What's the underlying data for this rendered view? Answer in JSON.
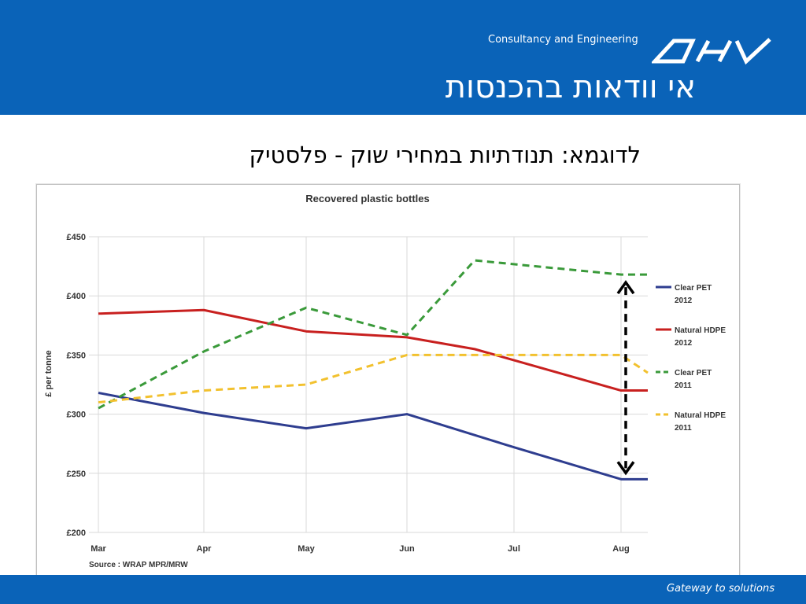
{
  "header": {
    "company_tagline": "Consultancy and Engineering",
    "logo_text": "DHV",
    "slide_title": "אי וודאות בהכנסות"
  },
  "subtitle": "לדוגמא: תנודתיות במחירי שוק - פלסטיק",
  "footer": {
    "tagline": "Gateway to solutions"
  },
  "colors": {
    "brand_blue": "#0a63b8",
    "clear_pet_2012": "#2e3d8f",
    "natural_hdpe_2012": "#c8201f",
    "clear_pet_2011": "#3a9a3a",
    "natural_hdpe_2011": "#f2c12e"
  },
  "chart_data": {
    "type": "line",
    "title": "Recovered plastic bottles",
    "xlabel": "",
    "ylabel": "£ per tonne",
    "source": "Source : WRAP MPR/MRW",
    "categories": [
      "Mar",
      "Apr",
      "May",
      "Jun",
      "Jul",
      "Aug"
    ],
    "y_ticks": [
      "£200",
      "£250",
      "£300",
      "£350",
      "£400",
      "£450"
    ],
    "ylim": [
      200,
      450
    ],
    "grid": true,
    "legend_position": "right",
    "series": [
      {
        "name": "Clear PET 2012",
        "name_lines": [
          "Clear PET",
          "2012"
        ],
        "color": "#2e3d8f",
        "dashed": false,
        "points": [
          [
            "Mar",
            318
          ],
          [
            "Apr",
            301
          ],
          [
            "May",
            288
          ],
          [
            "Jun",
            300
          ],
          [
            "Jul",
            272
          ],
          [
            "Aug",
            245
          ],
          [
            "Aug+",
            245
          ]
        ]
      },
      {
        "name": "Natural HDPE 2012",
        "name_lines": [
          "Natural HDPE",
          "2012"
        ],
        "color": "#c8201f",
        "dashed": false,
        "points": [
          [
            "Mar",
            385
          ],
          [
            "Apr",
            388
          ],
          [
            "May",
            370
          ],
          [
            "Jun",
            365
          ],
          [
            "Jun-Jul",
            355
          ],
          [
            "Aug",
            320
          ],
          [
            "Aug+",
            320
          ]
        ]
      },
      {
        "name": "Clear PET 2011",
        "name_lines": [
          "Clear PET",
          "2011"
        ],
        "color": "#3a9a3a",
        "dashed": true,
        "points": [
          [
            "Mar",
            305
          ],
          [
            "Apr",
            353
          ],
          [
            "May",
            390
          ],
          [
            "Jun",
            367
          ],
          [
            "Jun-Jul",
            430
          ],
          [
            "Aug",
            418
          ],
          [
            "Aug+",
            418
          ]
        ]
      },
      {
        "name": "Natural HDPE 2011",
        "name_lines": [
          "Natural HDPE",
          "2011"
        ],
        "color": "#f2c12e",
        "dashed": true,
        "points": [
          [
            "Mar",
            310
          ],
          [
            "Apr",
            320
          ],
          [
            "May",
            325
          ],
          [
            "Jun",
            350
          ],
          [
            "Jul",
            350
          ],
          [
            "Aug",
            350
          ],
          [
            "Aug+",
            335
          ]
        ]
      }
    ],
    "annotation": {
      "type": "double-arrow",
      "x": "Aug",
      "from": 418,
      "to": 245,
      "style": "dashed",
      "color": "#000000"
    }
  }
}
